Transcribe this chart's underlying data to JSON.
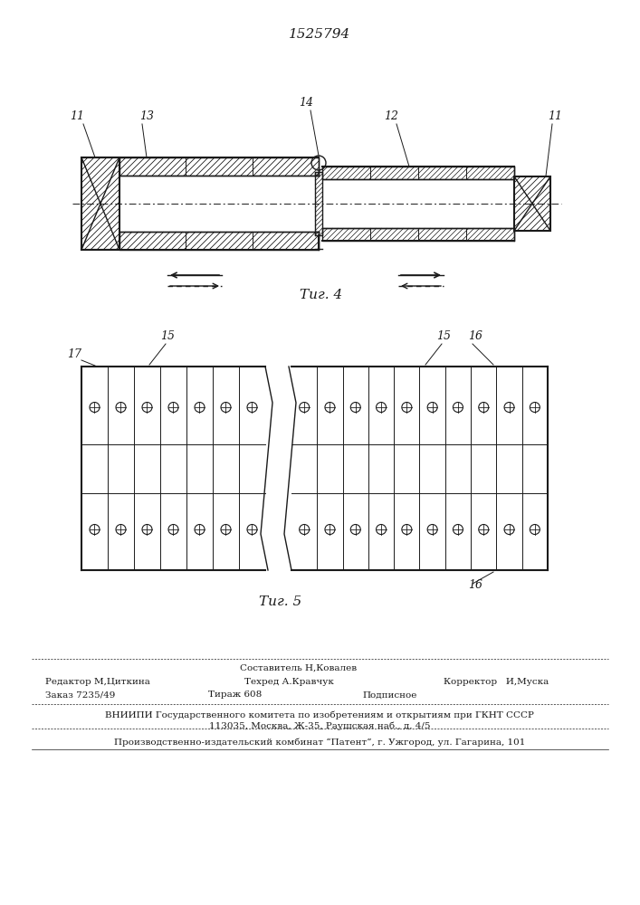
{
  "patent_number": "1525794",
  "fig4_label": "Τиг. 4",
  "fig5_label": "Τиг. 5",
  "footer": {
    "line1_center": "Составитель Н,Ковалев",
    "line2_left": "Редактор М,Циткина",
    "line2_center": "Техред А.Кравчук",
    "line2_right": "Корректор   И,Муска",
    "line3_left": "Заказ 7235/49",
    "line3_center": "Тираж 608",
    "line3_right": "Подписное",
    "line4": "ВНИИПИ Государственного комитета по изобретениям и открытиям при ГКНТ СССР",
    "line5": "113035, Москва, Ж-35, Раушская наб., д. 4/5",
    "line6": "Производственно-издательский комбинат “Патент”, г. Ужгород, ул. Гагарина, 101"
  },
  "bg_color": "#ffffff",
  "line_color": "#1a1a1a"
}
